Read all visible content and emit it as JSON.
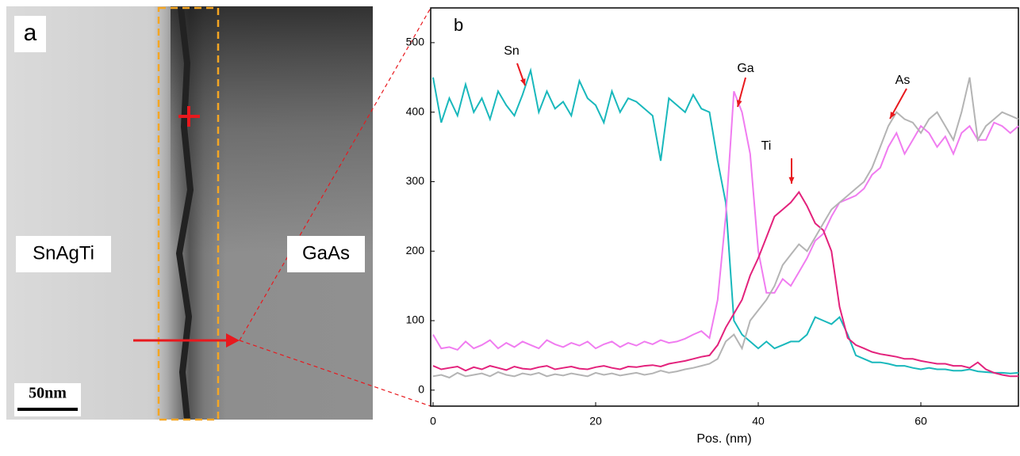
{
  "image_panel": {
    "label": "a",
    "left_label": "SnAgTi",
    "right_label": "GaAs",
    "scale_bar": "50nm"
  },
  "chart_data": {
    "type": "line",
    "panel_label": "b",
    "x_label": "Pos. (nm)",
    "x": [
      0,
      1,
      2,
      3,
      4,
      5,
      6,
      7,
      8,
      9,
      10,
      11,
      12,
      13,
      14,
      15,
      16,
      17,
      18,
      19,
      20,
      21,
      22,
      23,
      24,
      25,
      26,
      27,
      28,
      29,
      30,
      31,
      32,
      33,
      34,
      35,
      36,
      37,
      38,
      39,
      40,
      41,
      42,
      43,
      44,
      45,
      46,
      47,
      48,
      49,
      50,
      51,
      52,
      53,
      54,
      55,
      56,
      57,
      58,
      59,
      60,
      61,
      62,
      63,
      64,
      65,
      66,
      67,
      68,
      69,
      70,
      71,
      72
    ],
    "series": [
      {
        "name": "Sn",
        "color": "#19b8bc",
        "values": [
          450,
          385,
          420,
          395,
          440,
          400,
          420,
          390,
          430,
          410,
          395,
          425,
          460,
          400,
          430,
          405,
          415,
          395,
          445,
          420,
          410,
          385,
          430,
          400,
          420,
          415,
          405,
          395,
          330,
          420,
          410,
          400,
          425,
          405,
          400,
          330,
          270,
          100,
          80,
          70,
          60,
          70,
          60,
          65,
          70,
          70,
          80,
          105,
          100,
          95,
          105,
          80,
          50,
          45,
          40,
          40,
          38,
          35,
          35,
          32,
          30,
          32,
          30,
          30,
          28,
          28,
          30,
          27,
          26,
          25,
          25,
          24,
          25
        ]
      },
      {
        "name": "Ga",
        "color": "#f07cf0",
        "values": [
          80,
          60,
          62,
          58,
          70,
          60,
          65,
          72,
          60,
          68,
          62,
          70,
          65,
          60,
          72,
          66,
          62,
          68,
          64,
          70,
          60,
          66,
          70,
          62,
          68,
          64,
          70,
          66,
          72,
          68,
          70,
          74,
          80,
          85,
          75,
          130,
          250,
          430,
          400,
          340,
          200,
          140,
          140,
          160,
          150,
          170,
          190,
          215,
          225,
          250,
          270,
          275,
          280,
          290,
          310,
          320,
          350,
          370,
          340,
          360,
          380,
          370,
          350,
          365,
          340,
          370,
          380,
          360,
          360,
          385,
          380,
          370,
          380
        ]
      },
      {
        "name": "Ti",
        "color": "#e3227c",
        "values": [
          35,
          30,
          32,
          34,
          28,
          33,
          30,
          35,
          32,
          29,
          34,
          31,
          30,
          33,
          35,
          30,
          32,
          34,
          31,
          30,
          33,
          35,
          32,
          30,
          34,
          33,
          35,
          36,
          34,
          38,
          40,
          42,
          45,
          48,
          50,
          65,
          90,
          110,
          130,
          165,
          190,
          220,
          250,
          260,
          270,
          285,
          265,
          240,
          230,
          200,
          120,
          75,
          65,
          60,
          55,
          52,
          50,
          48,
          45,
          45,
          42,
          40,
          38,
          38,
          35,
          35,
          32,
          40,
          30,
          25,
          22,
          20,
          20
        ]
      },
      {
        "name": "As",
        "color": "#b4b4b4",
        "values": [
          20,
          22,
          18,
          25,
          20,
          22,
          24,
          20,
          26,
          22,
          20,
          24,
          22,
          25,
          20,
          23,
          21,
          24,
          22,
          20,
          25,
          22,
          24,
          21,
          23,
          25,
          22,
          24,
          28,
          25,
          27,
          30,
          32,
          35,
          38,
          45,
          70,
          80,
          60,
          100,
          115,
          130,
          150,
          180,
          195,
          210,
          200,
          220,
          240,
          260,
          270,
          280,
          290,
          300,
          320,
          350,
          380,
          400,
          390,
          385,
          370,
          390,
          400,
          380,
          360,
          400,
          450,
          360,
          380,
          390,
          400,
          395,
          390
        ]
      }
    ],
    "xlim": [
      0,
      72
    ],
    "ylim": [
      -23,
      550
    ],
    "xticks": [
      0,
      20,
      40,
      60
    ],
    "yticks": [
      0,
      100,
      200,
      300,
      400,
      500
    ],
    "grid": false
  }
}
